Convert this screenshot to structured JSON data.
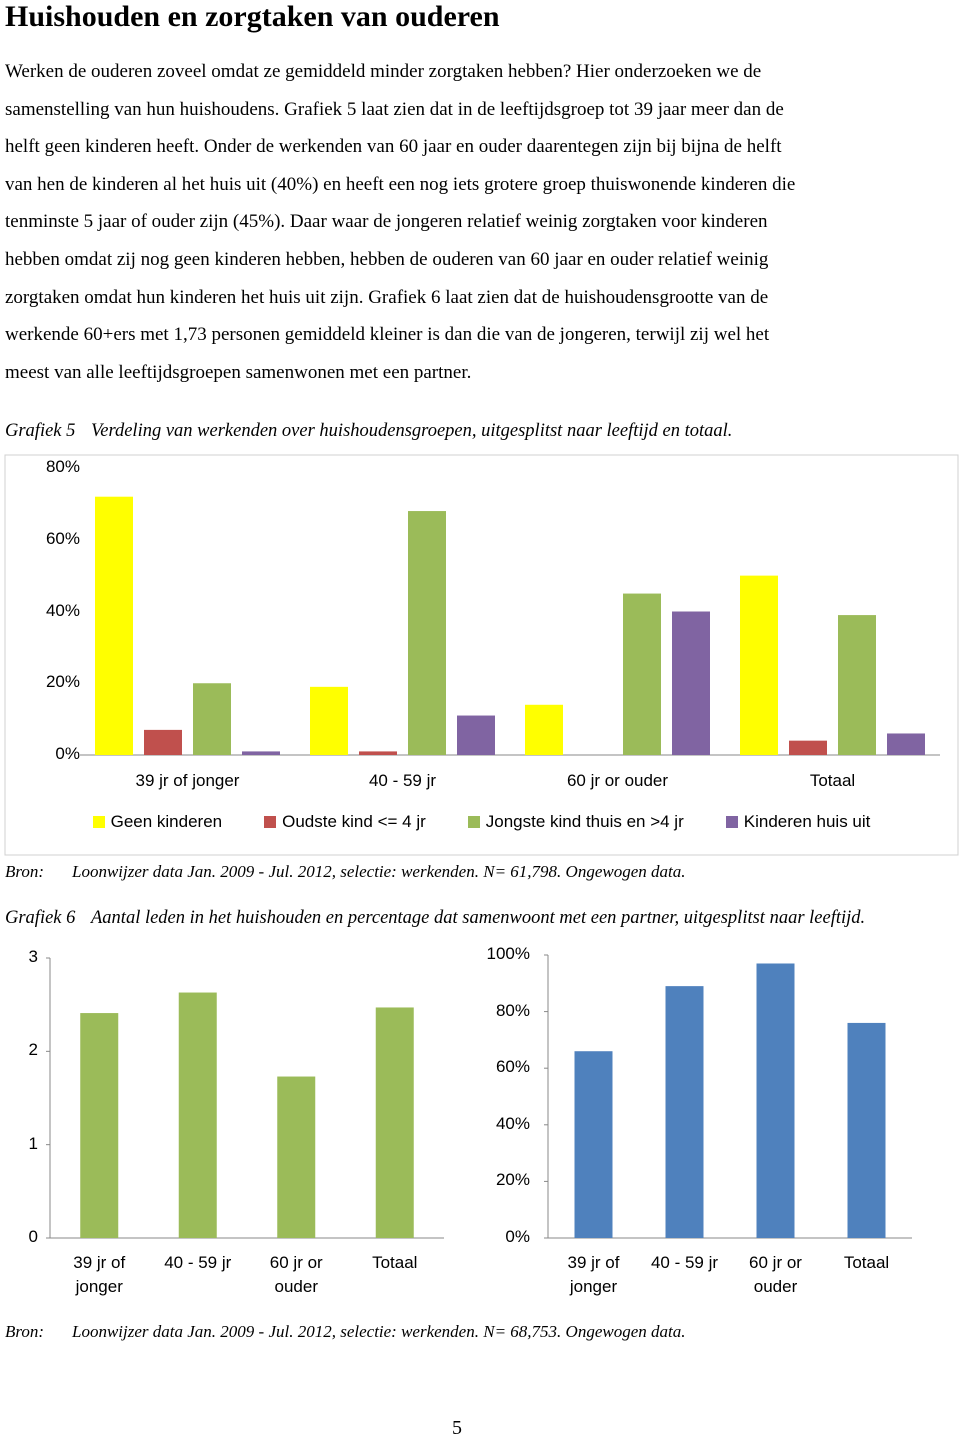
{
  "title": "Huishouden en zorgtaken van ouderen",
  "paragraph_lines": [
    "Werken de ouderen zoveel omdat ze gemiddeld minder zorgtaken hebben? Hier onderzoeken we de",
    "samenstelling van hun huishoudens. Grafiek 5 laat zien dat in de leeftijdsgroep tot 39 jaar meer dan de",
    "helft geen kinderen heeft. Onder de werkenden van 60 jaar en ouder daarentegen zijn bij bijna de helft",
    "van hen de kinderen al het huis uit (40%) en heeft een nog iets grotere groep thuiswonende kinderen die",
    "tenminste 5 jaar of ouder zijn (45%). Daar waar de jongeren relatief weinig zorgtaken voor kinderen",
    "hebben omdat zij nog geen kinderen hebben, hebben de ouderen van 60 jaar en ouder relatief weinig",
    "zorgtaken omdat hun kinderen het huis uit zijn. Grafiek 6 laat zien dat de huishoudensgrootte van de",
    "werkende 60+ers met 1,73 personen gemiddeld kleiner is dan die van de jongeren, terwijl zij wel het",
    "meest van alle leeftijdsgroepen samenwonen met een partner."
  ],
  "figures": [
    {
      "label": "Grafiek 5",
      "caption": "Verdeling van werkenden over huishoudensgroepen, uitgesplitst naar leeftijd en totaal.",
      "source_label": "Bron:",
      "source": "Loonwijzer data Jan. 2009 - Jul. 2012, selectie: werkenden. N= 61,798. Ongewogen data."
    },
    {
      "label": "Grafiek 6",
      "caption": "Aantal leden in het huishouden en percentage dat samenwoont met een partner, uitgesplitst naar leeftijd.",
      "source_label": "Bron:",
      "source": "Loonwijzer data Jan. 2009 - Jul. 2012, selectie: werkenden. N= 68,753. Ongewogen data."
    }
  ],
  "chart_data": [
    {
      "type": "bar",
      "categories": [
        "39 jr of jonger",
        "40 - 59 jr",
        "60 jr or ouder",
        "Totaal"
      ],
      "series": [
        {
          "name": "Geen kinderen",
          "color": "#ffff00",
          "values": [
            72,
            19,
            14,
            50
          ]
        },
        {
          "name": "Oudste kind <= 4 jr",
          "color": "#c0504d",
          "values": [
            7,
            1,
            0,
            4
          ]
        },
        {
          "name": "Jongste kind thuis en >4 jr",
          "color": "#9bbb59",
          "values": [
            20,
            68,
            45,
            39
          ]
        },
        {
          "name": "Kinderen huis uit",
          "color": "#8064a2",
          "values": [
            1,
            11,
            40,
            6
          ]
        }
      ],
      "ylim": [
        0,
        80
      ],
      "yticks": [
        {
          "value": 0,
          "label": "0%"
        },
        {
          "value": 20,
          "label": "20%"
        },
        {
          "value": 40,
          "label": "40%"
        },
        {
          "value": 60,
          "label": "60%"
        },
        {
          "value": 80,
          "label": "80%"
        }
      ],
      "grid": false,
      "legend": "bottom"
    },
    {
      "type": "bar",
      "categories": [
        "39 jr of jonger",
        "40 - 59 jr",
        "60 jr or ouder",
        "Totaal"
      ],
      "series": [
        {
          "color": "#9bbb59",
          "values": [
            2.41,
            2.63,
            1.73,
            2.47
          ]
        }
      ],
      "ylim": [
        0,
        3
      ],
      "yticks": [
        0,
        1,
        2,
        3
      ],
      "grid": false
    },
    {
      "type": "bar",
      "categories": [
        "39 jr of jonger",
        "40 - 59 jr",
        "60 jr or ouder",
        "Totaal"
      ],
      "series": [
        {
          "color": "#4f81bd",
          "values": [
            66,
            89,
            97,
            76
          ]
        }
      ],
      "ylim": [
        0,
        100
      ],
      "yticks": [
        {
          "value": 0,
          "label": "0%"
        },
        {
          "value": 20,
          "label": "20%"
        },
        {
          "value": 40,
          "label": "40%"
        },
        {
          "value": 60,
          "label": "60%"
        },
        {
          "value": 80,
          "label": "80%"
        },
        {
          "value": 100,
          "label": "100%"
        }
      ],
      "grid": false
    }
  ],
  "page_number": "5"
}
